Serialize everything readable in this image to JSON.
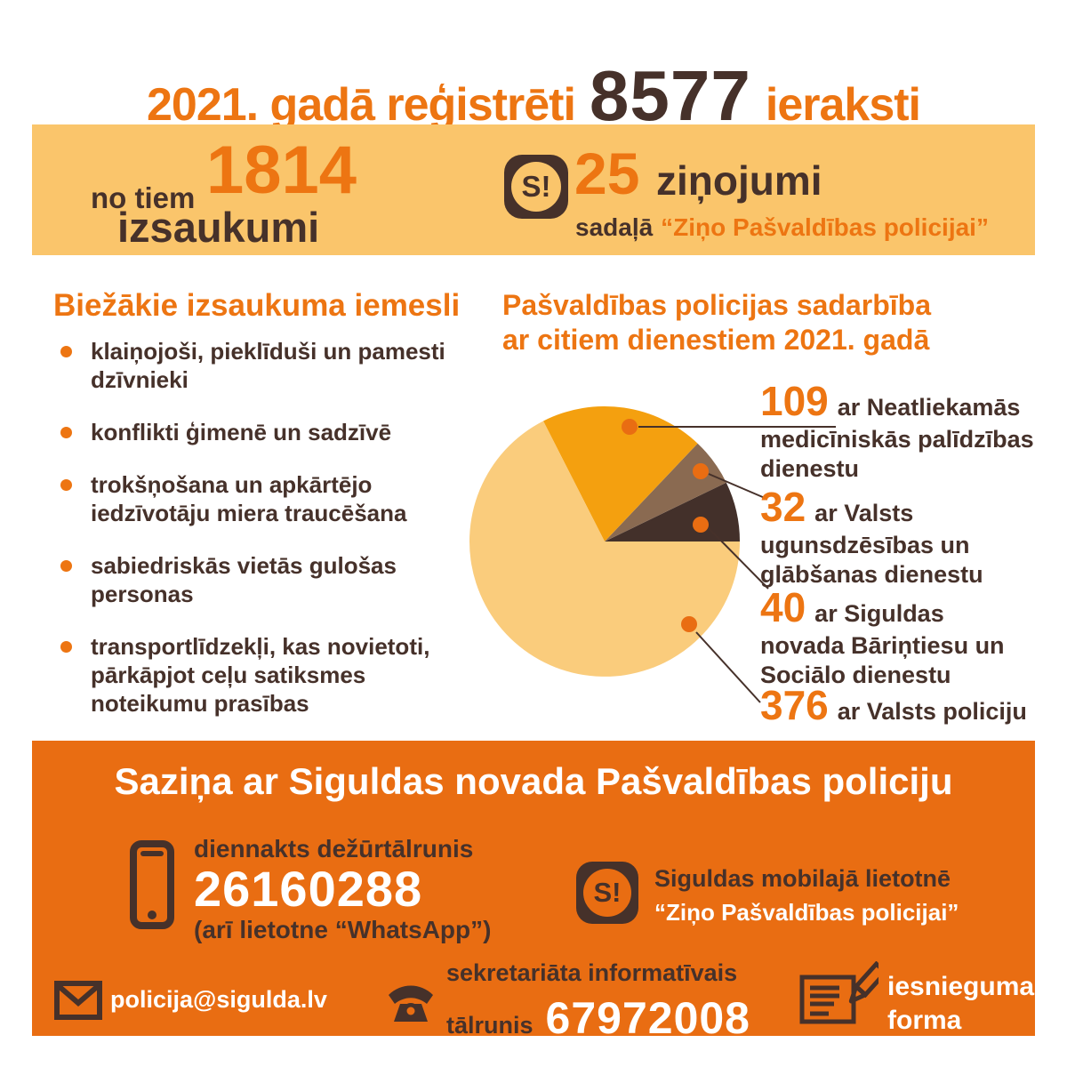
{
  "colors": {
    "accent_orange": "#ED7512",
    "dark_brown": "#46312A",
    "banner_bg": "#FAC56B",
    "footer_bg": "#E96D12",
    "white": "#FFFFFF",
    "pie_pale": "#FACC7C",
    "pie_orange": "#F4A00F",
    "pie_brown": "#8A6A51",
    "pie_dark": "#43302A"
  },
  "header": {
    "title_prefix": "2021. gadā reģistrēti",
    "title_number": "8577",
    "title_suffix": "ieraksti"
  },
  "banner": {
    "calls_prefix": "no tiem",
    "calls_number": "1814",
    "calls_label": "izsaukumi",
    "app_icon_text": "S!",
    "reports_number": "25",
    "reports_label": "ziņojumi",
    "reports_sub_prefix": "sadaļā",
    "reports_sub_quote": "“Ziņo Pašvaldības policijai”"
  },
  "reasons": {
    "heading": "Biežākie izsaukuma iemesli",
    "items": [
      "klaiņojoši, pieklīduši un pamesti dzīvnieki",
      "konflikti ģimenē un sadzīvē",
      "trokšņošana un apkārtējo iedzīvotāju miera traucēšana",
      "sabiedriskās vietās gulošas personas",
      "transportlīdzekļi, kas novietoti, pārkāpjot ceļu satiksmes noteikumu prasības"
    ]
  },
  "cooperation": {
    "heading_line1": "Pašvaldības policijas sadarbība",
    "heading_line2": "ar citiem dienestiem 2021. gadā",
    "labels": [
      {
        "number": "109",
        "line1": "ar Neatliekamās",
        "line2": "medicīniskās palīdzības",
        "line3": "dienestu"
      },
      {
        "number": "32",
        "line1": "ar Valsts",
        "line2": "ugunsdzēsības un",
        "line3": "glābšanas dienestu"
      },
      {
        "number": "40",
        "line1": "ar Siguldas",
        "line2": "novada Bāriņtiesu un",
        "line3": "Sociālo dienestu"
      },
      {
        "number": "376",
        "line1": "ar Valsts policiju"
      }
    ]
  },
  "chart_data": {
    "type": "pie",
    "title": "Pašvaldības policijas sadarbība ar citiem dienestiem 2021. gadā",
    "total": 557,
    "start_angle_deg": 0,
    "direction": "counterclockwise",
    "slices": [
      {
        "label": "ar Siguldas novada Bāriņtiesu un Sociālo dienestu",
        "value": 40,
        "color": "#43302A"
      },
      {
        "label": "ar Valsts ugunsdzēsības un glābšanas dienestu",
        "value": 32,
        "color": "#8A6A51"
      },
      {
        "label": "ar Neatliekamās medicīniskās palīdzības dienestu",
        "value": 109,
        "color": "#F4A00F"
      },
      {
        "label": "ar Valsts policiju",
        "value": 376,
        "color": "#FACC7C"
      }
    ]
  },
  "footer": {
    "heading": "Saziņa ar Siguldas novada Pašvaldības policiju",
    "duty_label": "diennakts dežūrtālrunis",
    "duty_number": "26160288",
    "duty_note": "(arī lietotne “WhatsApp”)",
    "app_icon_text": "S!",
    "app_line1": "Siguldas mobilajā lietotnē",
    "app_line2": "“Ziņo Pašvaldības policijai”",
    "email": "policija@sigulda.lv",
    "secretariat_label_line1": "sekretariāta informatīvais",
    "secretariat_label_line2": "tālrunis",
    "secretariat_number": "67972008",
    "form_line1": "iesnieguma",
    "form_line2": "forma"
  }
}
